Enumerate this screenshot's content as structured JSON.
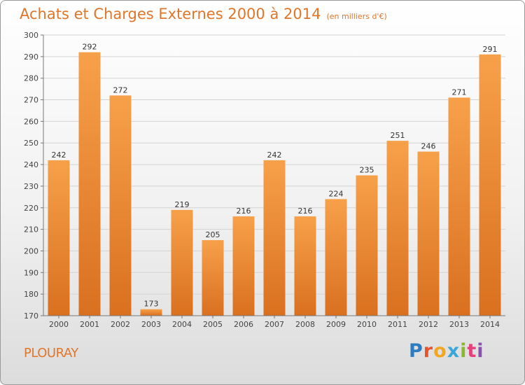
{
  "title": "Achats et Charges Externes 2000 à 2014",
  "subtitle": "(en milliers d'€)",
  "town": "PLOURAY",
  "logo": {
    "text": "Proxiti",
    "letters": [
      {
        "ch": "P",
        "color": "#2d7cc1"
      },
      {
        "ch": "r",
        "color": "#e8532b"
      },
      {
        "ch": "o",
        "color": "#f2a623"
      },
      {
        "ch": "x",
        "color": "#3aa7d8"
      },
      {
        "ch": "i",
        "color": "#89b92d"
      },
      {
        "ch": "t",
        "color": "#e5407a"
      },
      {
        "ch": "i",
        "color": "#8a4fb0"
      }
    ]
  },
  "colors": {
    "bar_light": "#f7a04a",
    "bar_dark": "#d9701f",
    "accent": "#e0762a",
    "grid": "#d3d3d3"
  },
  "chart_data": {
    "type": "bar",
    "categories": [
      "2000",
      "2001",
      "2002",
      "2003",
      "2004",
      "2005",
      "2006",
      "2007",
      "2008",
      "2009",
      "2010",
      "2011",
      "2012",
      "2013",
      "2014"
    ],
    "values": [
      242,
      292,
      272,
      173,
      219,
      205,
      216,
      242,
      216,
      224,
      235,
      251,
      246,
      271,
      291
    ],
    "ylim": [
      170,
      300
    ],
    "yticks": [
      170,
      180,
      190,
      200,
      210,
      220,
      230,
      240,
      250,
      260,
      270,
      280,
      290,
      300
    ],
    "grid": true
  }
}
